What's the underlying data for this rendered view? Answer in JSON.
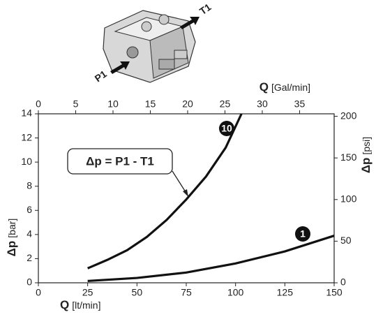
{
  "chart_data": {
    "type": "line",
    "valve_labels": [
      "P1",
      "T1"
    ],
    "x_label": {
      "symbol": "Q",
      "unit": "[lt/min]"
    },
    "x2_label": {
      "symbol": "Q",
      "unit": "[Gal/min]"
    },
    "y_label": {
      "symbol": "Δp",
      "unit": "[bar]"
    },
    "y2_label": {
      "symbol": "Δp",
      "unit": "[psi]"
    },
    "annotation": "Δp = P1 - T1",
    "xlim": [
      0,
      150
    ],
    "xticks": [
      0,
      25,
      50,
      75,
      100,
      125,
      150
    ],
    "x2lim": [
      0,
      39.63
    ],
    "x2ticks": [
      0,
      5,
      10,
      15,
      20,
      25,
      30,
      35
    ],
    "ylim": [
      0,
      14
    ],
    "yticks": [
      0,
      2,
      4,
      6,
      8,
      10,
      12,
      14
    ],
    "y2lim": [
      0,
      203
    ],
    "y2ticks": [
      0,
      50,
      100,
      150,
      200
    ],
    "grid": false,
    "series": [
      {
        "name": "10",
        "color": "#111111",
        "x": [
          25,
          35,
          45,
          55,
          65,
          75,
          85,
          95,
          103
        ],
        "values": [
          1.2,
          1.9,
          2.7,
          3.8,
          5.2,
          6.9,
          8.8,
          11.2,
          14
        ]
      },
      {
        "name": "1",
        "color": "#111111",
        "x": [
          25,
          50,
          75,
          100,
          125,
          150
        ],
        "values": [
          0.15,
          0.4,
          0.85,
          1.6,
          2.6,
          3.9
        ]
      }
    ]
  }
}
